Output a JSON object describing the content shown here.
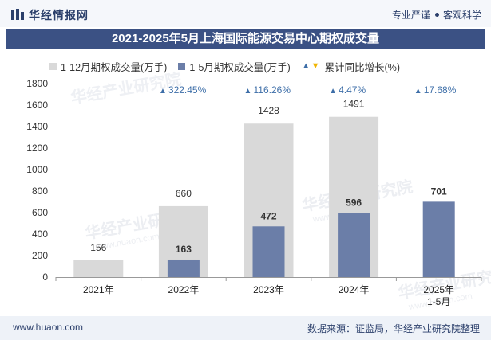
{
  "header": {
    "brand": "华经情报网",
    "slogan_left": "专业严谨",
    "slogan_right": "客观科学"
  },
  "colors": {
    "series1": "#d9d9d9",
    "series2": "#6b7ea8",
    "growth": "#3d6ea8",
    "growth_marker_down": "#f0b400",
    "title_bg": "#3b5184"
  },
  "watermark": {
    "text_cn": "华经产业研究院",
    "text_en": "www.huaon.com"
  },
  "chart_data": {
    "type": "bar",
    "title": "2021-2025年5月上海国际能源交易中心期权成交量",
    "categories": [
      "2021年",
      "2022年",
      "2023年",
      "2024年",
      "2025年\n1-5月"
    ],
    "series": [
      {
        "name": "1-12月期权成交量(万手)",
        "values": [
          156,
          660,
          1428,
          1491,
          null
        ]
      },
      {
        "name": "1-5月期权成交量(万手)",
        "values": [
          null,
          163,
          472,
          596,
          701
        ]
      }
    ],
    "growth": {
      "name": "累计同比增长(%)",
      "labels": [
        "",
        "322.45%",
        "116.26%",
        "4.47%",
        "17.68%"
      ]
    },
    "yticks": [
      "0",
      "200",
      "400",
      "600",
      "800",
      "1000",
      "1200",
      "1400",
      "1600",
      "1800"
    ],
    "ylim": [
      0,
      1800
    ]
  },
  "footer": {
    "url": "www.huaon.com",
    "source": "数据来源：证监局，华经产业研究院整理"
  }
}
